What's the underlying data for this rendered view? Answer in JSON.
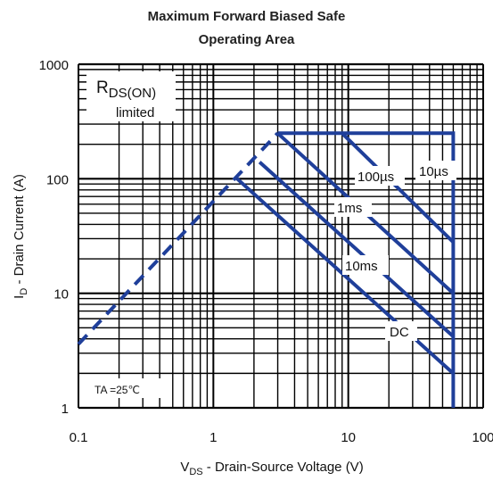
{
  "chart_data": {
    "type": "line",
    "title_line1": "Maximum Forward Biased Safe",
    "title_line2": "Operating Area",
    "xlabel": "V",
    "xlabel_sub": "DS",
    "xlabel_rest": " - Drain-Source Voltage (V)",
    "ylabel": "I",
    "ylabel_sub": "D",
    "ylabel_rest": " - Drain Current (A)",
    "xscale": "log",
    "yscale": "log",
    "xlim": [
      0.1,
      100
    ],
    "ylim": [
      1,
      1000
    ],
    "x_ticks": [
      "0.1",
      "1",
      "10",
      "100"
    ],
    "y_ticks": [
      "1",
      "10",
      "100",
      "1000"
    ],
    "grid": true,
    "series": [
      {
        "dashed": true,
        "points": [
          [
            0.1,
            3.6
          ],
          [
            3,
            250
          ]
        ]
      },
      {
        "dashed": false,
        "points": [
          [
            3,
            250
          ],
          [
            60,
            250
          ],
          [
            60,
            1
          ]
        ]
      },
      {
        "dashed": false,
        "points": [
          [
            9,
            250
          ],
          [
            60,
            28
          ]
        ]
      },
      {
        "dashed": false,
        "points": [
          [
            3,
            250
          ],
          [
            60,
            10
          ]
        ]
      },
      {
        "dashed": false,
        "points": [
          [
            2.2,
            140
          ],
          [
            60,
            4.2
          ]
        ]
      },
      {
        "dashed": false,
        "points": [
          [
            1.5,
            100
          ],
          [
            60,
            2
          ]
        ]
      }
    ],
    "annotations": {
      "rds_main": "R",
      "rds_sub": "DS(ON)",
      "rds_line2": "limited",
      "a10us": "10µs",
      "a100us": "100µs",
      "a1ms": "1ms",
      "a10ms": "10ms",
      "dc": "DC",
      "ta": "TA =25℃"
    },
    "colors": {
      "curve": "#1f3f9a",
      "grid": "#000000",
      "background": "#ffffff"
    }
  }
}
